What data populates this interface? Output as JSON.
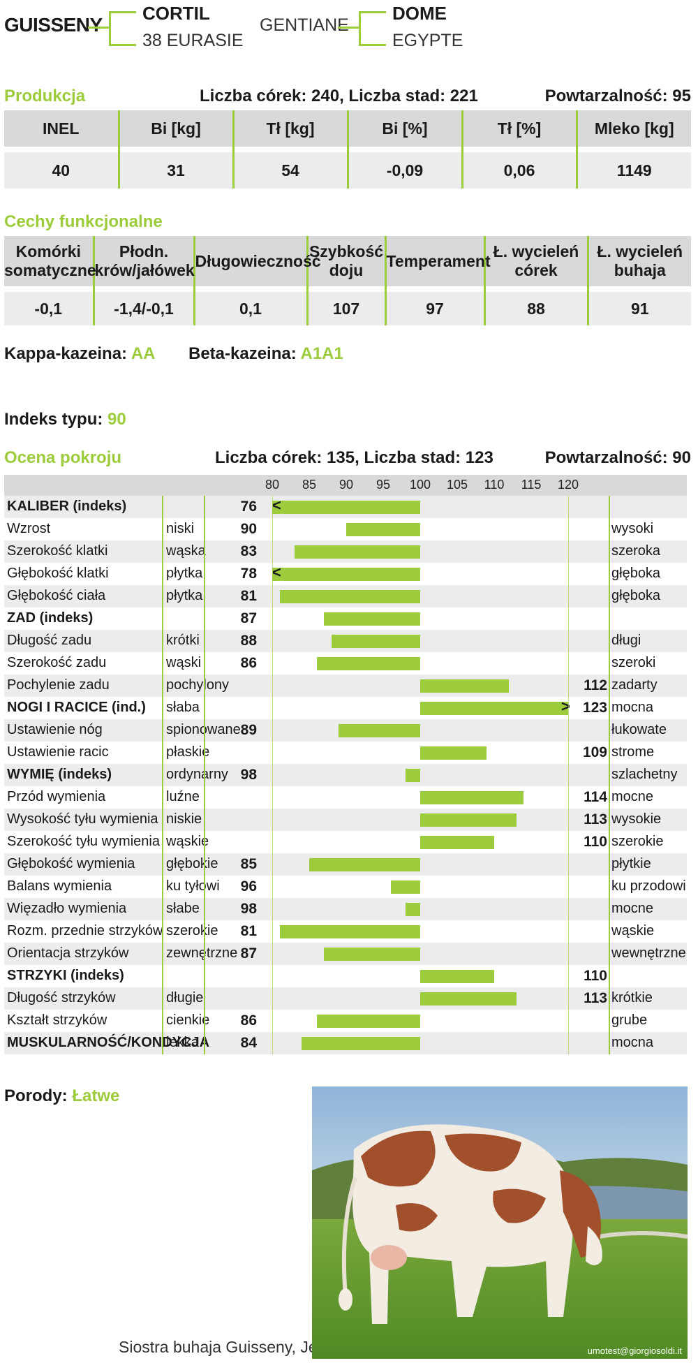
{
  "pedigree": {
    "bull": "GUISSENY",
    "sire": "CORTIL",
    "sire_sire": "38 EURASIE",
    "dam": "GENTIANE",
    "mgs": "DOME",
    "mgd": "EGYPTE"
  },
  "production": {
    "title": "Produkcja",
    "counts": "Liczba córek: 240, Liczba stad: 221",
    "reliability": "Powtarzalność: 95",
    "headers": [
      "INEL",
      "Bi [kg]",
      "Tł [kg]",
      "Bi [%]",
      "Tł [%]",
      "Mleko [kg]"
    ],
    "values": [
      "40",
      "31",
      "54",
      "-0,09",
      "0,06",
      "1149"
    ]
  },
  "functional": {
    "title": "Cechy funkcjonalne",
    "headers": [
      [
        "Komórki",
        "somatyczne"
      ],
      [
        "Płodn.",
        "krów/jałówek"
      ],
      [
        "Długowieczność",
        ""
      ],
      [
        "Szybkość",
        "doju"
      ],
      [
        "Temperament",
        ""
      ],
      [
        "Ł. wycieleń",
        "córek"
      ],
      [
        "Ł. wycieleń",
        "buhaja"
      ]
    ],
    "values": [
      "-0,1",
      "-1,4/-0,1",
      "0,1",
      "107",
      "97",
      "88",
      "91"
    ]
  },
  "kappa": {
    "label": "Kappa-kazeina: ",
    "value": "AA"
  },
  "beta": {
    "label": "Beta-kazeina: ",
    "value": "A1A1"
  },
  "type_index": {
    "label": "Indeks typu: ",
    "value": "90"
  },
  "conformation": {
    "title": "Ocena pokroju",
    "counts": "Liczba córek: 135, Liczba stad: 123",
    "reliability": "Powtarzalność: 90",
    "scale": [
      80,
      85,
      90,
      95,
      100,
      105,
      110,
      115,
      120
    ]
  },
  "chart_data": {
    "type": "bar",
    "axis_ticks": [
      80,
      85,
      90,
      95,
      100,
      105,
      110,
      115,
      120
    ],
    "baseline": 100,
    "ylim": [
      80,
      120
    ],
    "rows": [
      {
        "name": "KALIBER (indeks)",
        "bold": true,
        "low": "",
        "high": "",
        "value": 76,
        "clip": "<"
      },
      {
        "name": "Wzrost",
        "low": "niski",
        "high": "wysoki",
        "value": 90
      },
      {
        "name": "Szerokość klatki",
        "low": "wąska",
        "high": "szeroka",
        "value": 83
      },
      {
        "name": "Głębokość klatki",
        "low": "płytka",
        "high": "głęboka",
        "value": 78,
        "clip": "<"
      },
      {
        "name": "Głębokość ciała",
        "low": "płytka",
        "high": "głęboka",
        "value": 81
      },
      {
        "name": "ZAD (indeks)",
        "bold": true,
        "low": "",
        "high": "",
        "value": 87
      },
      {
        "name": "Długość zadu",
        "low": "krótki",
        "high": "długi",
        "value": 88
      },
      {
        "name": "Szerokość zadu",
        "low": "wąski",
        "high": "szeroki",
        "value": 86
      },
      {
        "name": "Pochylenie zadu",
        "low": "pochylony",
        "high": "zadarty",
        "value": 112
      },
      {
        "name": "NOGI I RACICE (ind.)",
        "bold": true,
        "low": "słaba",
        "high": "mocna",
        "value": 123,
        "clip": ">"
      },
      {
        "name": "Ustawienie nóg",
        "low": "spionowane",
        "high": "łukowate",
        "value": 89
      },
      {
        "name": "Ustawienie racic",
        "low": "płaskie",
        "high": "strome",
        "value": 109
      },
      {
        "name": "WYMIĘ (indeks)",
        "bold": true,
        "low": "ordynarny",
        "high": "szlachetny",
        "value": 98
      },
      {
        "name": "Przód wymienia",
        "low": "luźne",
        "high": "mocne",
        "value": 114
      },
      {
        "name": "Wysokość tyłu wymienia",
        "low": "niskie",
        "high": "wysokie",
        "value": 113
      },
      {
        "name": "Szerokość tyłu wymienia",
        "low": "wąskie",
        "high": "szerokie",
        "value": 110
      },
      {
        "name": "Głębokość wymienia",
        "low": "głębokie",
        "high": "płytkie",
        "value": 85
      },
      {
        "name": "Balans wymienia",
        "low": "ku tyłowi",
        "high": "ku przodowi",
        "value": 96
      },
      {
        "name": "Więzadło wymienia",
        "low": "słabe",
        "high": "mocne",
        "value": 98
      },
      {
        "name": "Rozm. przednie strzyków",
        "low": "szerokie",
        "high": "wąskie",
        "value": 81
      },
      {
        "name": "Orientacja strzyków",
        "low": "zewnętrzne",
        "high": "wewnętrzne",
        "value": 87
      },
      {
        "name": "STRZYKI (indeks)",
        "bold": true,
        "low": "",
        "high": "",
        "value": 110
      },
      {
        "name": "Długość strzyków",
        "low": "długie",
        "high": "krótkie",
        "value": 113
      },
      {
        "name": "Kształt strzyków",
        "low": "cienkie",
        "high": "grube",
        "value": 86
      },
      {
        "name": "MUSKULARNOŚĆ/KONDYCJA",
        "bold": true,
        "low": "lekka",
        "high": "mocna",
        "value": 84
      }
    ]
  },
  "calving": {
    "label": "Porody: ",
    "value": "Łatwe"
  },
  "photo": {
    "caption": "Siostra buhaja Guisseny, Jestine",
    "watermark": "umotest@giorgiosoldi.it"
  },
  "colors": {
    "accent": "#9ccb3b",
    "header_bg": "#d9d9d9",
    "row_bg": "#ececec"
  }
}
